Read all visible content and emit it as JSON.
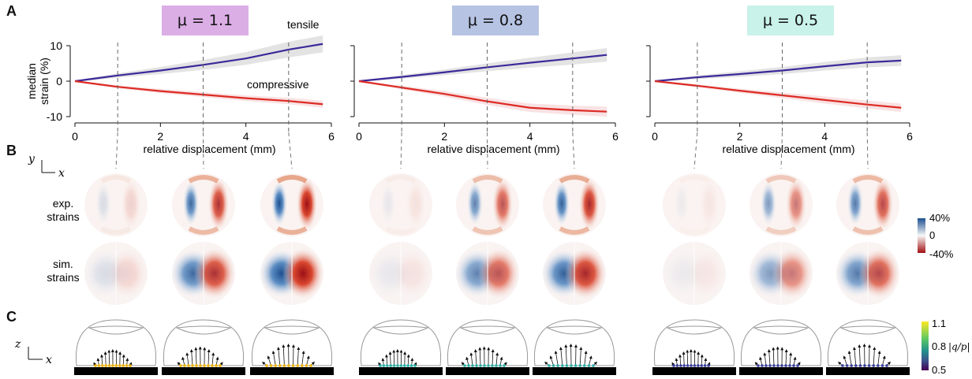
{
  "panels": {
    "a": "A",
    "b": "B",
    "c": "C"
  },
  "mu_labels": [
    "μ = 1.1",
    "μ = 0.8",
    "μ = 0.5"
  ],
  "colors": {
    "tensile": "#3a2a9a",
    "compressive": "#dc2b24",
    "mu_boxes": [
      "#dbaee6",
      "#b6c3e3",
      "#c9f2ea"
    ],
    "band_tensile": "#d9d9d9",
    "band_compressive": "#f7d8da"
  },
  "panelA": {
    "ylabel": "median\nstrain (%)",
    "xlabel": "relative displacement (mm)",
    "series_labels": {
      "tensile": "tensile",
      "compressive": "compressive"
    }
  },
  "panelB": {
    "row_labels": [
      "exp.\nstrains",
      "sim.\nstrains"
    ],
    "axis_y": "y",
    "axis_x": "x",
    "colorbar_ticks": [
      "40%",
      "0",
      "-40%"
    ]
  },
  "panelC": {
    "axis_z": "z",
    "axis_x": "x",
    "colorbar_ticks": [
      "1.1",
      "0.8",
      "0.5"
    ],
    "colorbar_label": "|q/p|"
  },
  "chart_data": [
    {
      "type": "line",
      "title": "μ = 1.1",
      "xlabel": "relative displacement (mm)",
      "ylabel": "median strain (%)",
      "xlim": [
        0,
        6
      ],
      "ylim": [
        -10,
        10
      ],
      "xticks": [
        0,
        2,
        4,
        6
      ],
      "yticks": [
        -10,
        0,
        10
      ],
      "snapshot_displacements": [
        1,
        3,
        5
      ],
      "x": [
        0,
        1,
        2,
        3,
        4,
        5,
        5.8
      ],
      "series": [
        {
          "name": "tensile",
          "values": [
            0,
            1.6,
            3.0,
            4.6,
            6.4,
            8.9,
            10.5
          ],
          "band_halfwidth": [
            0.2,
            0.6,
            1.0,
            1.4,
            1.8,
            2.2,
            2.4
          ]
        },
        {
          "name": "compressive",
          "values": [
            0,
            -1.6,
            -2.8,
            -3.8,
            -4.8,
            -5.6,
            -6.5
          ],
          "band_halfwidth": [
            0.2,
            0.4,
            0.6,
            0.7,
            0.8,
            0.9,
            1.0
          ]
        }
      ]
    },
    {
      "type": "line",
      "title": "μ = 0.8",
      "xlabel": "relative displacement (mm)",
      "xlim": [
        0,
        6
      ],
      "ylim": [
        -10,
        10
      ],
      "xticks": [
        0,
        2,
        4,
        6
      ],
      "snapshot_displacements": [
        1,
        3,
        5
      ],
      "x": [
        0,
        1,
        2,
        3,
        4,
        5,
        5.8
      ],
      "series": [
        {
          "name": "tensile",
          "values": [
            0,
            1.2,
            2.5,
            3.9,
            5.2,
            6.4,
            7.4
          ],
          "band_halfwidth": [
            0.2,
            0.5,
            0.8,
            1.1,
            1.4,
            1.7,
            1.9
          ]
        },
        {
          "name": "compressive",
          "values": [
            0,
            -1.8,
            -3.6,
            -5.7,
            -7.5,
            -8.2,
            -8.6
          ],
          "band_halfwidth": [
            0.2,
            0.5,
            0.8,
            1.0,
            1.2,
            1.3,
            1.4
          ]
        }
      ]
    },
    {
      "type": "line",
      "title": "μ = 0.5",
      "xlabel": "relative displacement (mm)",
      "xlim": [
        0,
        6
      ],
      "ylim": [
        -10,
        10
      ],
      "xticks": [
        0,
        2,
        4,
        6
      ],
      "snapshot_displacements": [
        1,
        3,
        5
      ],
      "x": [
        0,
        1,
        2,
        3,
        4,
        5,
        5.8
      ],
      "series": [
        {
          "name": "tensile",
          "values": [
            0,
            1.1,
            2.0,
            3.0,
            4.2,
            5.3,
            5.8
          ],
          "band_halfwidth": [
            0.2,
            0.5,
            0.8,
            1.0,
            1.2,
            1.4,
            1.5
          ]
        },
        {
          "name": "compressive",
          "values": [
            0,
            -1.3,
            -2.7,
            -4.0,
            -5.3,
            -6.6,
            -7.5
          ],
          "band_halfwidth": [
            0.2,
            0.4,
            0.6,
            0.8,
            1.0,
            1.1,
            1.2
          ]
        }
      ]
    }
  ]
}
